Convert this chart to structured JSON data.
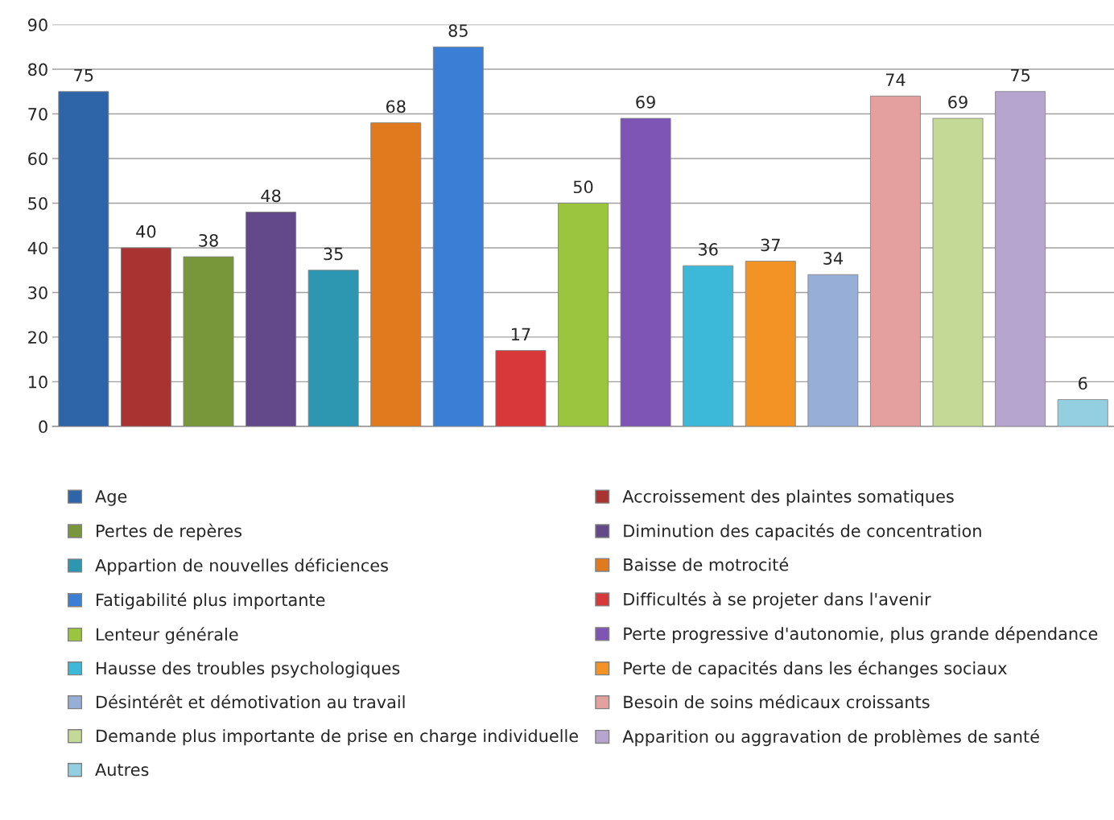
{
  "chart_data": {
    "type": "bar",
    "categories": [
      null,
      null,
      null,
      null,
      null,
      null,
      null,
      null,
      null,
      null,
      null,
      null,
      null,
      null,
      null,
      null,
      null
    ],
    "series": [
      {
        "name": "Age",
        "color": "#2e64a8",
        "values": [
          75,
          null,
          null,
          null,
          null,
          null,
          null,
          null,
          null,
          null,
          null,
          null,
          null,
          null,
          null,
          null,
          null
        ]
      },
      {
        "name": "Accroissement des plaintes somatiques",
        "color": "#a93331",
        "values": [
          null,
          40,
          null,
          null,
          null,
          null,
          null,
          null,
          null,
          null,
          null,
          null,
          null,
          null,
          null,
          null,
          null
        ]
      },
      {
        "name": "Pertes de repères",
        "color": "#78973a",
        "values": [
          null,
          null,
          38,
          null,
          null,
          null,
          null,
          null,
          null,
          null,
          null,
          null,
          null,
          null,
          null,
          null,
          null
        ]
      },
      {
        "name": "Diminution des capacités de concentration",
        "color": "#63488a",
        "values": [
          null,
          null,
          null,
          48,
          null,
          null,
          null,
          null,
          null,
          null,
          null,
          null,
          null,
          null,
          null,
          null,
          null
        ]
      },
      {
        "name": "Appartion de nouvelles déficiences",
        "color": "#2d96b0",
        "values": [
          null,
          null,
          null,
          null,
          35,
          null,
          null,
          null,
          null,
          null,
          null,
          null,
          null,
          null,
          null,
          null,
          null
        ]
      },
      {
        "name": "Baisse de motrocité",
        "color": "#e17a1e",
        "values": [
          null,
          null,
          null,
          null,
          null,
          68,
          null,
          null,
          null,
          null,
          null,
          null,
          null,
          null,
          null,
          null,
          null
        ]
      },
      {
        "name": "Fatigabilité plus importante",
        "color": "#3a7fd5",
        "values": [
          null,
          null,
          null,
          null,
          null,
          null,
          85,
          null,
          null,
          null,
          null,
          null,
          null,
          null,
          null,
          null,
          null
        ]
      },
      {
        "name": "Difficultés à se projeter dans l'avenir",
        "color": "#d8383a",
        "values": [
          null,
          null,
          null,
          null,
          null,
          null,
          null,
          17,
          null,
          null,
          null,
          null,
          null,
          null,
          null,
          null,
          null
        ]
      },
      {
        "name": "Lenteur générale",
        "color": "#9bc53f",
        "values": [
          null,
          null,
          null,
          null,
          null,
          null,
          null,
          null,
          50,
          null,
          null,
          null,
          null,
          null,
          null,
          null,
          null
        ]
      },
      {
        "name": "Perte progressive d'autonomie, plus grande dépendance",
        "color": "#7e55b5",
        "values": [
          null,
          null,
          null,
          null,
          null,
          null,
          null,
          null,
          null,
          69,
          null,
          null,
          null,
          null,
          null,
          null,
          null
        ]
      },
      {
        "name": "Hausse des troubles psychologiques",
        "color": "#3cb8d8",
        "values": [
          null,
          null,
          null,
          null,
          null,
          null,
          null,
          null,
          null,
          null,
          36,
          null,
          null,
          null,
          null,
          null,
          null
        ]
      },
      {
        "name": "Perte de capacités dans les échanges sociaux",
        "color": "#f39225",
        "values": [
          null,
          null,
          null,
          null,
          null,
          null,
          null,
          null,
          null,
          null,
          null,
          37,
          null,
          null,
          null,
          null,
          null
        ]
      },
      {
        "name": "Désintérêt et démotivation au travail",
        "color": "#97aed6",
        "values": [
          null,
          null,
          null,
          null,
          null,
          null,
          null,
          null,
          null,
          null,
          null,
          null,
          34,
          null,
          null,
          null,
          null
        ]
      },
      {
        "name": "Besoin de soins médicaux croissants",
        "color": "#e4a09f",
        "values": [
          null,
          null,
          null,
          null,
          null,
          null,
          null,
          null,
          null,
          null,
          null,
          null,
          null,
          74,
          null,
          null,
          null
        ]
      },
      {
        "name": "Demande plus importante de prise en charge individuelle",
        "color": "#c5d996",
        "values": [
          null,
          null,
          null,
          null,
          null,
          null,
          null,
          null,
          null,
          null,
          null,
          null,
          null,
          null,
          69,
          null,
          null
        ]
      },
      {
        "name": "Apparition ou aggravation de problèmes de santé",
        "color": "#b5a5cf",
        "values": [
          null,
          null,
          null,
          null,
          null,
          null,
          null,
          null,
          null,
          null,
          null,
          null,
          null,
          null,
          null,
          75,
          null
        ]
      },
      {
        "name": "Autres",
        "color": "#93cfe0",
        "values": [
          null,
          null,
          null,
          null,
          null,
          null,
          null,
          null,
          null,
          null,
          null,
          null,
          null,
          null,
          null,
          null,
          6
        ]
      }
    ],
    "ylim": [
      0,
      90
    ],
    "yticks": [
      0,
      10,
      20,
      30,
      40,
      50,
      60,
      70,
      80,
      90
    ],
    "grid": "y",
    "data_labels": true,
    "legend": "bottom"
  }
}
